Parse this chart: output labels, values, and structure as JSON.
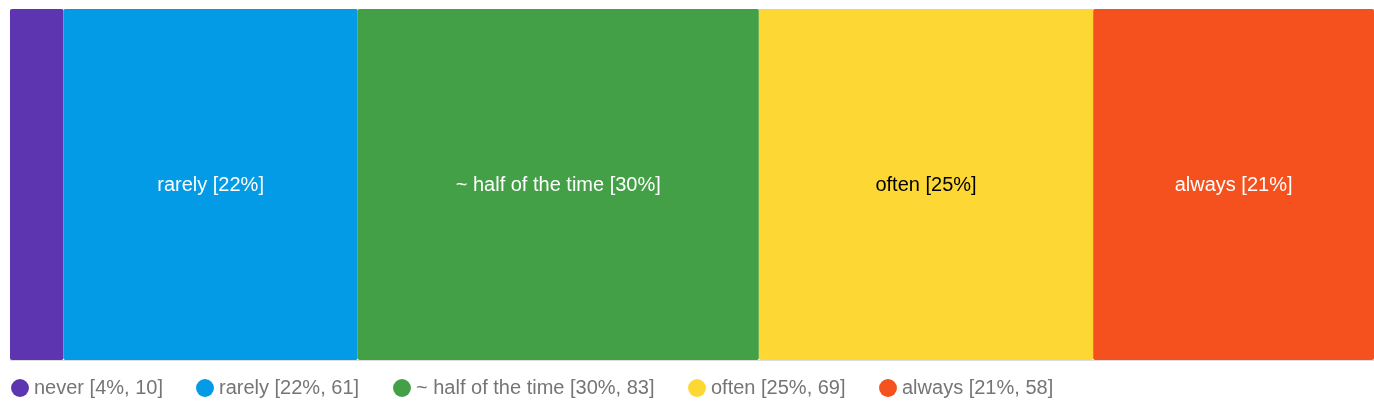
{
  "chart_data": {
    "type": "bar",
    "orientation": "horizontal",
    "stacked": true,
    "categories": [
      null
    ],
    "tick_labels": false,
    "legend": "bottom",
    "series": [
      {
        "name": "never [4%, 10]",
        "color": "#5e35b1",
        "values": [
          4
        ],
        "value_labels": [
          null
        ]
      },
      {
        "name": "rarely [22%, 61]",
        "color": "#039be5",
        "values": [
          22
        ],
        "value_labels": [
          "rarely [22%]"
        ]
      },
      {
        "name": "~ half of the time [30%, 83]",
        "color": "#43a047",
        "values": [
          30
        ],
        "value_labels": [
          "~ half of the time [30%]"
        ]
      },
      {
        "name": "often [25%, 69]",
        "color": "#fdd835",
        "values": [
          25
        ],
        "value_labels": [
          "often [25%]"
        ]
      },
      {
        "name": "always [21%, 58]",
        "color": "#f4511e",
        "values": [
          21
        ],
        "value_labels": [
          "always [21%]"
        ]
      }
    ]
  }
}
